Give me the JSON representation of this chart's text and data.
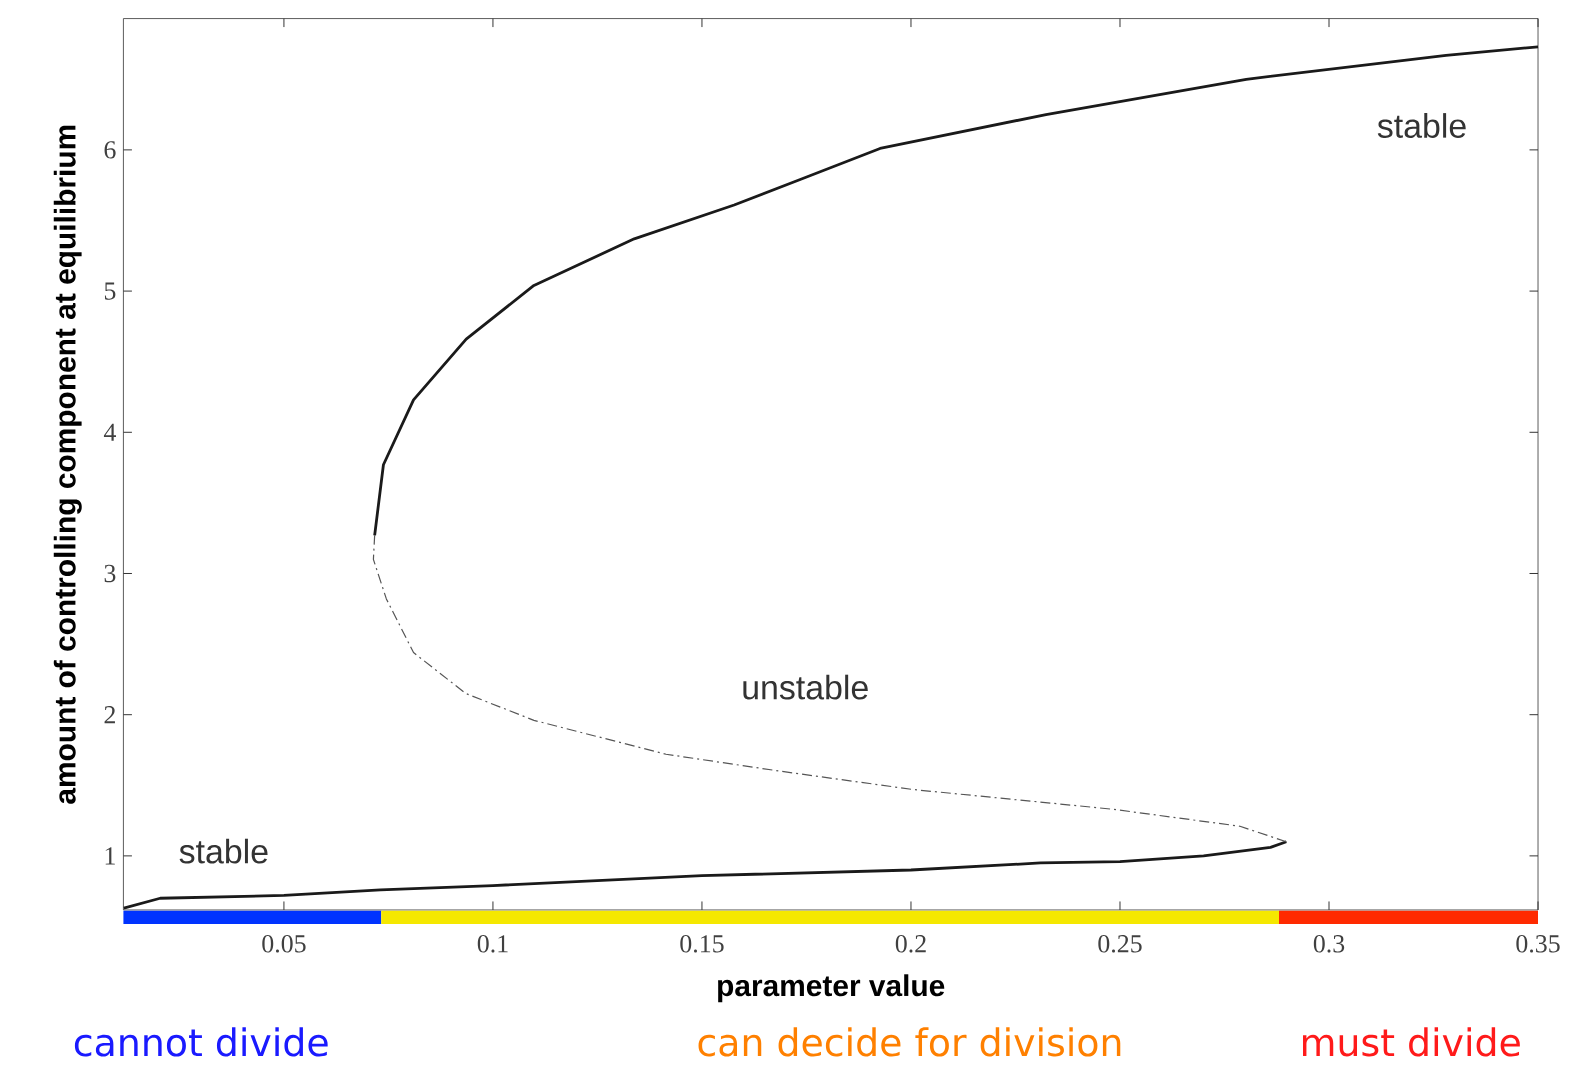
{
  "chart_data": {
    "type": "line",
    "xlabel": "parameter value",
    "ylabel": "amount of controlling component at equilibrium",
    "xlim": [
      0.0116,
      0.35
    ],
    "ylim": [
      0.617,
      6.93
    ],
    "xticks": [
      0.05,
      0.1,
      0.15,
      0.2,
      0.25,
      0.3,
      0.35
    ],
    "yticks": [
      1,
      2,
      3,
      4,
      5,
      6
    ],
    "grid": false,
    "marker": "none",
    "series": [
      {
        "color": "#1a1a1a",
        "line_style": "solid",
        "x": [
          0.0117,
          0.0204,
          0.05,
          0.0731,
          0.1,
          0.15,
          0.2,
          0.231,
          0.25,
          0.27,
          0.286,
          0.2898
        ],
        "values": [
          0.63,
          0.7,
          0.72,
          0.76,
          0.79,
          0.86,
          0.9,
          0.95,
          0.96,
          1.0,
          1.06,
          1.1
        ]
      },
      {
        "color": "#555555",
        "line_style": "dashed",
        "x": [
          0.2898,
          0.2787,
          0.2484,
          0.2005,
          0.1687,
          0.1414,
          0.1098,
          0.0935,
          0.081,
          0.0745,
          0.0714,
          0.0717
        ],
        "values": [
          1.1,
          1.21,
          1.33,
          1.47,
          1.6,
          1.72,
          1.96,
          2.15,
          2.44,
          2.82,
          3.1,
          3.27
        ]
      },
      {
        "color": "#1a1a1a",
        "line_style": "solid",
        "x": [
          0.0717,
          0.0738,
          0.081,
          0.0936,
          0.1098,
          0.1338,
          0.1577,
          0.1735,
          0.1926,
          0.2323,
          0.2802,
          0.328,
          0.35
        ],
        "values": [
          3.27,
          3.77,
          4.23,
          4.66,
          5.04,
          5.37,
          5.61,
          5.79,
          6.01,
          6.25,
          6.5,
          6.67,
          6.73
        ]
      }
    ],
    "annotations": [
      "stable",
      "unstable",
      "stable",
      "cannot divide",
      "can decide for division",
      "must divide"
    ]
  }
}
